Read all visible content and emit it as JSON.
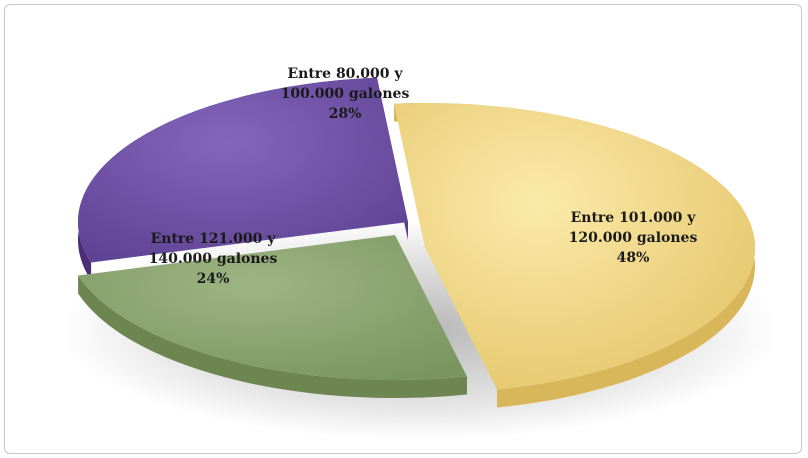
{
  "chart_data": {
    "type": "pie",
    "title": "",
    "slices": [
      {
        "label_line1": "Entre 101.000 y",
        "label_line2": "120.000 galones",
        "percent_label": "48%",
        "value": 48,
        "color": "#e9cf7a"
      },
      {
        "label_line1": "Entre 121.000 y",
        "label_line2": "140.000 galones",
        "percent_label": "24%",
        "value": 24,
        "color": "#87a06a"
      },
      {
        "label_line1": "Entre 80.000 y",
        "label_line2": "100.000 galones",
        "percent_label": "28%",
        "value": 28,
        "color": "#6f4fa6"
      }
    ],
    "legend": "none",
    "style": "3d-exploded"
  }
}
